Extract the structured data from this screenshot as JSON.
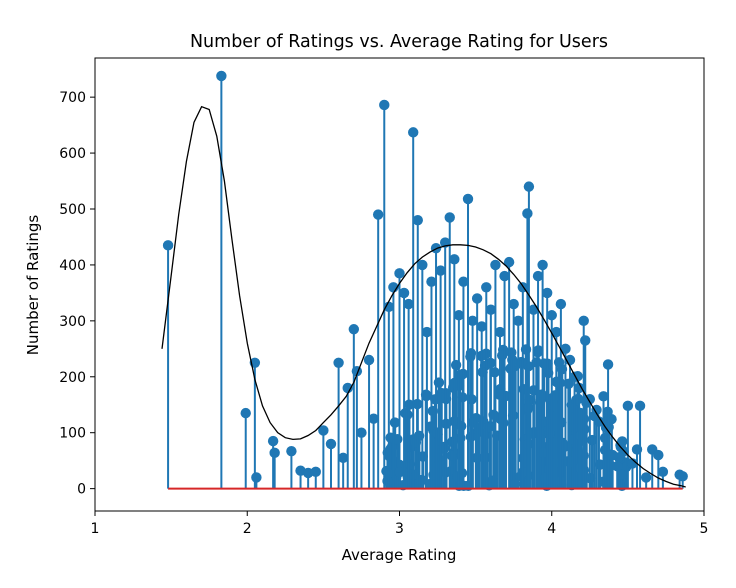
{
  "chart_data": {
    "type": "scatter",
    "subtype": "stem",
    "title": "Number of Ratings vs. Average Rating for Users",
    "xlabel": "Average Rating",
    "ylabel": "Number of Ratings",
    "xlim": [
      1,
      5
    ],
    "ylim": [
      -40,
      770
    ],
    "xticks": [
      1,
      2,
      3,
      4,
      5
    ],
    "yticks": [
      0,
      100,
      200,
      300,
      400,
      500,
      600,
      700
    ],
    "grid": false,
    "legend": "none",
    "colors": {
      "stem": "#1f77b4",
      "baseline": "#d62728",
      "curve": "#000000"
    },
    "baseline": {
      "y": 0,
      "x_range": [
        1.48,
        4.86
      ]
    },
    "series": [
      {
        "kind": "stem",
        "points": [
          {
            "x": 1.48,
            "y": 435
          },
          {
            "x": 1.83,
            "y": 738
          },
          {
            "x": 1.99,
            "y": 135
          },
          {
            "x": 2.05,
            "y": 225
          },
          {
            "x": 2.06,
            "y": 20
          },
          {
            "x": 2.17,
            "y": 85
          },
          {
            "x": 2.18,
            "y": 64
          },
          {
            "x": 2.29,
            "y": 67
          },
          {
            "x": 2.35,
            "y": 32
          },
          {
            "x": 2.4,
            "y": 28
          },
          {
            "x": 2.45,
            "y": 30
          },
          {
            "x": 2.5,
            "y": 104
          },
          {
            "x": 2.55,
            "y": 80
          },
          {
            "x": 2.6,
            "y": 225
          },
          {
            "x": 2.63,
            "y": 55
          },
          {
            "x": 2.66,
            "y": 180
          },
          {
            "x": 2.7,
            "y": 285
          },
          {
            "x": 2.72,
            "y": 210
          },
          {
            "x": 2.75,
            "y": 100
          },
          {
            "x": 2.8,
            "y": 230
          },
          {
            "x": 2.83,
            "y": 125
          },
          {
            "x": 2.86,
            "y": 490
          },
          {
            "x": 2.9,
            "y": 686
          },
          {
            "x": 2.93,
            "y": 325
          },
          {
            "x": 2.96,
            "y": 360
          },
          {
            "x": 3.0,
            "y": 385
          },
          {
            "x": 3.03,
            "y": 350
          },
          {
            "x": 3.06,
            "y": 330
          },
          {
            "x": 3.09,
            "y": 637
          },
          {
            "x": 3.12,
            "y": 480
          },
          {
            "x": 3.15,
            "y": 400
          },
          {
            "x": 3.18,
            "y": 280
          },
          {
            "x": 3.21,
            "y": 370
          },
          {
            "x": 3.24,
            "y": 430
          },
          {
            "x": 3.27,
            "y": 390
          },
          {
            "x": 3.3,
            "y": 440
          },
          {
            "x": 3.33,
            "y": 485
          },
          {
            "x": 3.36,
            "y": 410
          },
          {
            "x": 3.39,
            "y": 310
          },
          {
            "x": 3.42,
            "y": 370
          },
          {
            "x": 3.45,
            "y": 518
          },
          {
            "x": 3.48,
            "y": 300
          },
          {
            "x": 3.51,
            "y": 340
          },
          {
            "x": 3.54,
            "y": 290
          },
          {
            "x": 3.57,
            "y": 360
          },
          {
            "x": 3.6,
            "y": 320
          },
          {
            "x": 3.63,
            "y": 400
          },
          {
            "x": 3.66,
            "y": 280
          },
          {
            "x": 3.69,
            "y": 380
          },
          {
            "x": 3.72,
            "y": 405
          },
          {
            "x": 3.75,
            "y": 330
          },
          {
            "x": 3.78,
            "y": 300
          },
          {
            "x": 3.81,
            "y": 360
          },
          {
            "x": 3.84,
            "y": 492
          },
          {
            "x": 3.85,
            "y": 540
          },
          {
            "x": 3.88,
            "y": 320
          },
          {
            "x": 3.91,
            "y": 380
          },
          {
            "x": 3.94,
            "y": 400
          },
          {
            "x": 3.97,
            "y": 350
          },
          {
            "x": 4.0,
            "y": 310
          },
          {
            "x": 4.03,
            "y": 280
          },
          {
            "x": 4.06,
            "y": 330
          },
          {
            "x": 4.09,
            "y": 250
          },
          {
            "x": 4.12,
            "y": 230
          },
          {
            "x": 4.15,
            "y": 200
          },
          {
            "x": 4.18,
            "y": 180
          },
          {
            "x": 4.21,
            "y": 300
          },
          {
            "x": 4.22,
            "y": 265
          },
          {
            "x": 4.25,
            "y": 160
          },
          {
            "x": 4.28,
            "y": 130
          },
          {
            "x": 4.31,
            "y": 120
          },
          {
            "x": 4.34,
            "y": 165
          },
          {
            "x": 4.37,
            "y": 222
          },
          {
            "x": 4.4,
            "y": 60
          },
          {
            "x": 4.43,
            "y": 40
          },
          {
            "x": 4.46,
            "y": 25
          },
          {
            "x": 4.5,
            "y": 148
          },
          {
            "x": 4.53,
            "y": 45
          },
          {
            "x": 4.56,
            "y": 70
          },
          {
            "x": 4.58,
            "y": 148
          },
          {
            "x": 4.62,
            "y": 20
          },
          {
            "x": 4.66,
            "y": 70
          },
          {
            "x": 4.7,
            "y": 60
          },
          {
            "x": 4.73,
            "y": 30
          },
          {
            "x": 4.84,
            "y": 25
          },
          {
            "x": 4.86,
            "y": 22
          }
        ]
      },
      {
        "kind": "line",
        "points": [
          {
            "x": 1.44,
            "y": 250
          },
          {
            "x": 1.5,
            "y": 380
          },
          {
            "x": 1.55,
            "y": 490
          },
          {
            "x": 1.6,
            "y": 585
          },
          {
            "x": 1.65,
            "y": 655
          },
          {
            "x": 1.7,
            "y": 683
          },
          {
            "x": 1.75,
            "y": 678
          },
          {
            "x": 1.8,
            "y": 630
          },
          {
            "x": 1.85,
            "y": 550
          },
          {
            "x": 1.9,
            "y": 445
          },
          {
            "x": 1.95,
            "y": 345
          },
          {
            "x": 2.0,
            "y": 260
          },
          {
            "x": 2.05,
            "y": 195
          },
          {
            "x": 2.1,
            "y": 148
          },
          {
            "x": 2.15,
            "y": 118
          },
          {
            "x": 2.2,
            "y": 100
          },
          {
            "x": 2.25,
            "y": 91
          },
          {
            "x": 2.3,
            "y": 88
          },
          {
            "x": 2.35,
            "y": 89
          },
          {
            "x": 2.4,
            "y": 95
          },
          {
            "x": 2.45,
            "y": 104
          },
          {
            "x": 2.5,
            "y": 118
          },
          {
            "x": 2.55,
            "y": 132
          },
          {
            "x": 2.6,
            "y": 148
          },
          {
            "x": 2.65,
            "y": 165
          },
          {
            "x": 2.7,
            "y": 190
          },
          {
            "x": 2.75,
            "y": 225
          },
          {
            "x": 2.8,
            "y": 260
          },
          {
            "x": 2.85,
            "y": 290
          },
          {
            "x": 2.9,
            "y": 320
          },
          {
            "x": 2.95,
            "y": 345
          },
          {
            "x": 3.0,
            "y": 367
          },
          {
            "x": 3.05,
            "y": 386
          },
          {
            "x": 3.1,
            "y": 402
          },
          {
            "x": 3.15,
            "y": 414
          },
          {
            "x": 3.2,
            "y": 423
          },
          {
            "x": 3.25,
            "y": 430
          },
          {
            "x": 3.3,
            "y": 434
          },
          {
            "x": 3.35,
            "y": 436
          },
          {
            "x": 3.4,
            "y": 436
          },
          {
            "x": 3.45,
            "y": 435
          },
          {
            "x": 3.5,
            "y": 432
          },
          {
            "x": 3.55,
            "y": 427
          },
          {
            "x": 3.6,
            "y": 420
          },
          {
            "x": 3.65,
            "y": 410
          },
          {
            "x": 3.7,
            "y": 398
          },
          {
            "x": 3.75,
            "y": 383
          },
          {
            "x": 3.8,
            "y": 366
          },
          {
            "x": 3.85,
            "y": 346
          },
          {
            "x": 3.9,
            "y": 325
          },
          {
            "x": 3.95,
            "y": 302
          },
          {
            "x": 4.0,
            "y": 278
          },
          {
            "x": 4.05,
            "y": 253
          },
          {
            "x": 4.1,
            "y": 228
          },
          {
            "x": 4.15,
            "y": 203
          },
          {
            "x": 4.2,
            "y": 178
          },
          {
            "x": 4.25,
            "y": 155
          },
          {
            "x": 4.3,
            "y": 132
          },
          {
            "x": 4.35,
            "y": 111
          },
          {
            "x": 4.4,
            "y": 92
          },
          {
            "x": 4.45,
            "y": 75
          },
          {
            "x": 4.5,
            "y": 60
          },
          {
            "x": 4.55,
            "y": 47
          },
          {
            "x": 4.6,
            "y": 36
          },
          {
            "x": 4.65,
            "y": 27
          },
          {
            "x": 4.7,
            "y": 19
          },
          {
            "x": 4.75,
            "y": 13
          },
          {
            "x": 4.8,
            "y": 8
          },
          {
            "x": 4.85,
            "y": 5
          },
          {
            "x": 4.88,
            "y": 3
          }
        ]
      }
    ],
    "dense_cluster": {
      "x_range": [
        2.9,
        4.5
      ],
      "y_max": 260,
      "count": 220
    }
  }
}
